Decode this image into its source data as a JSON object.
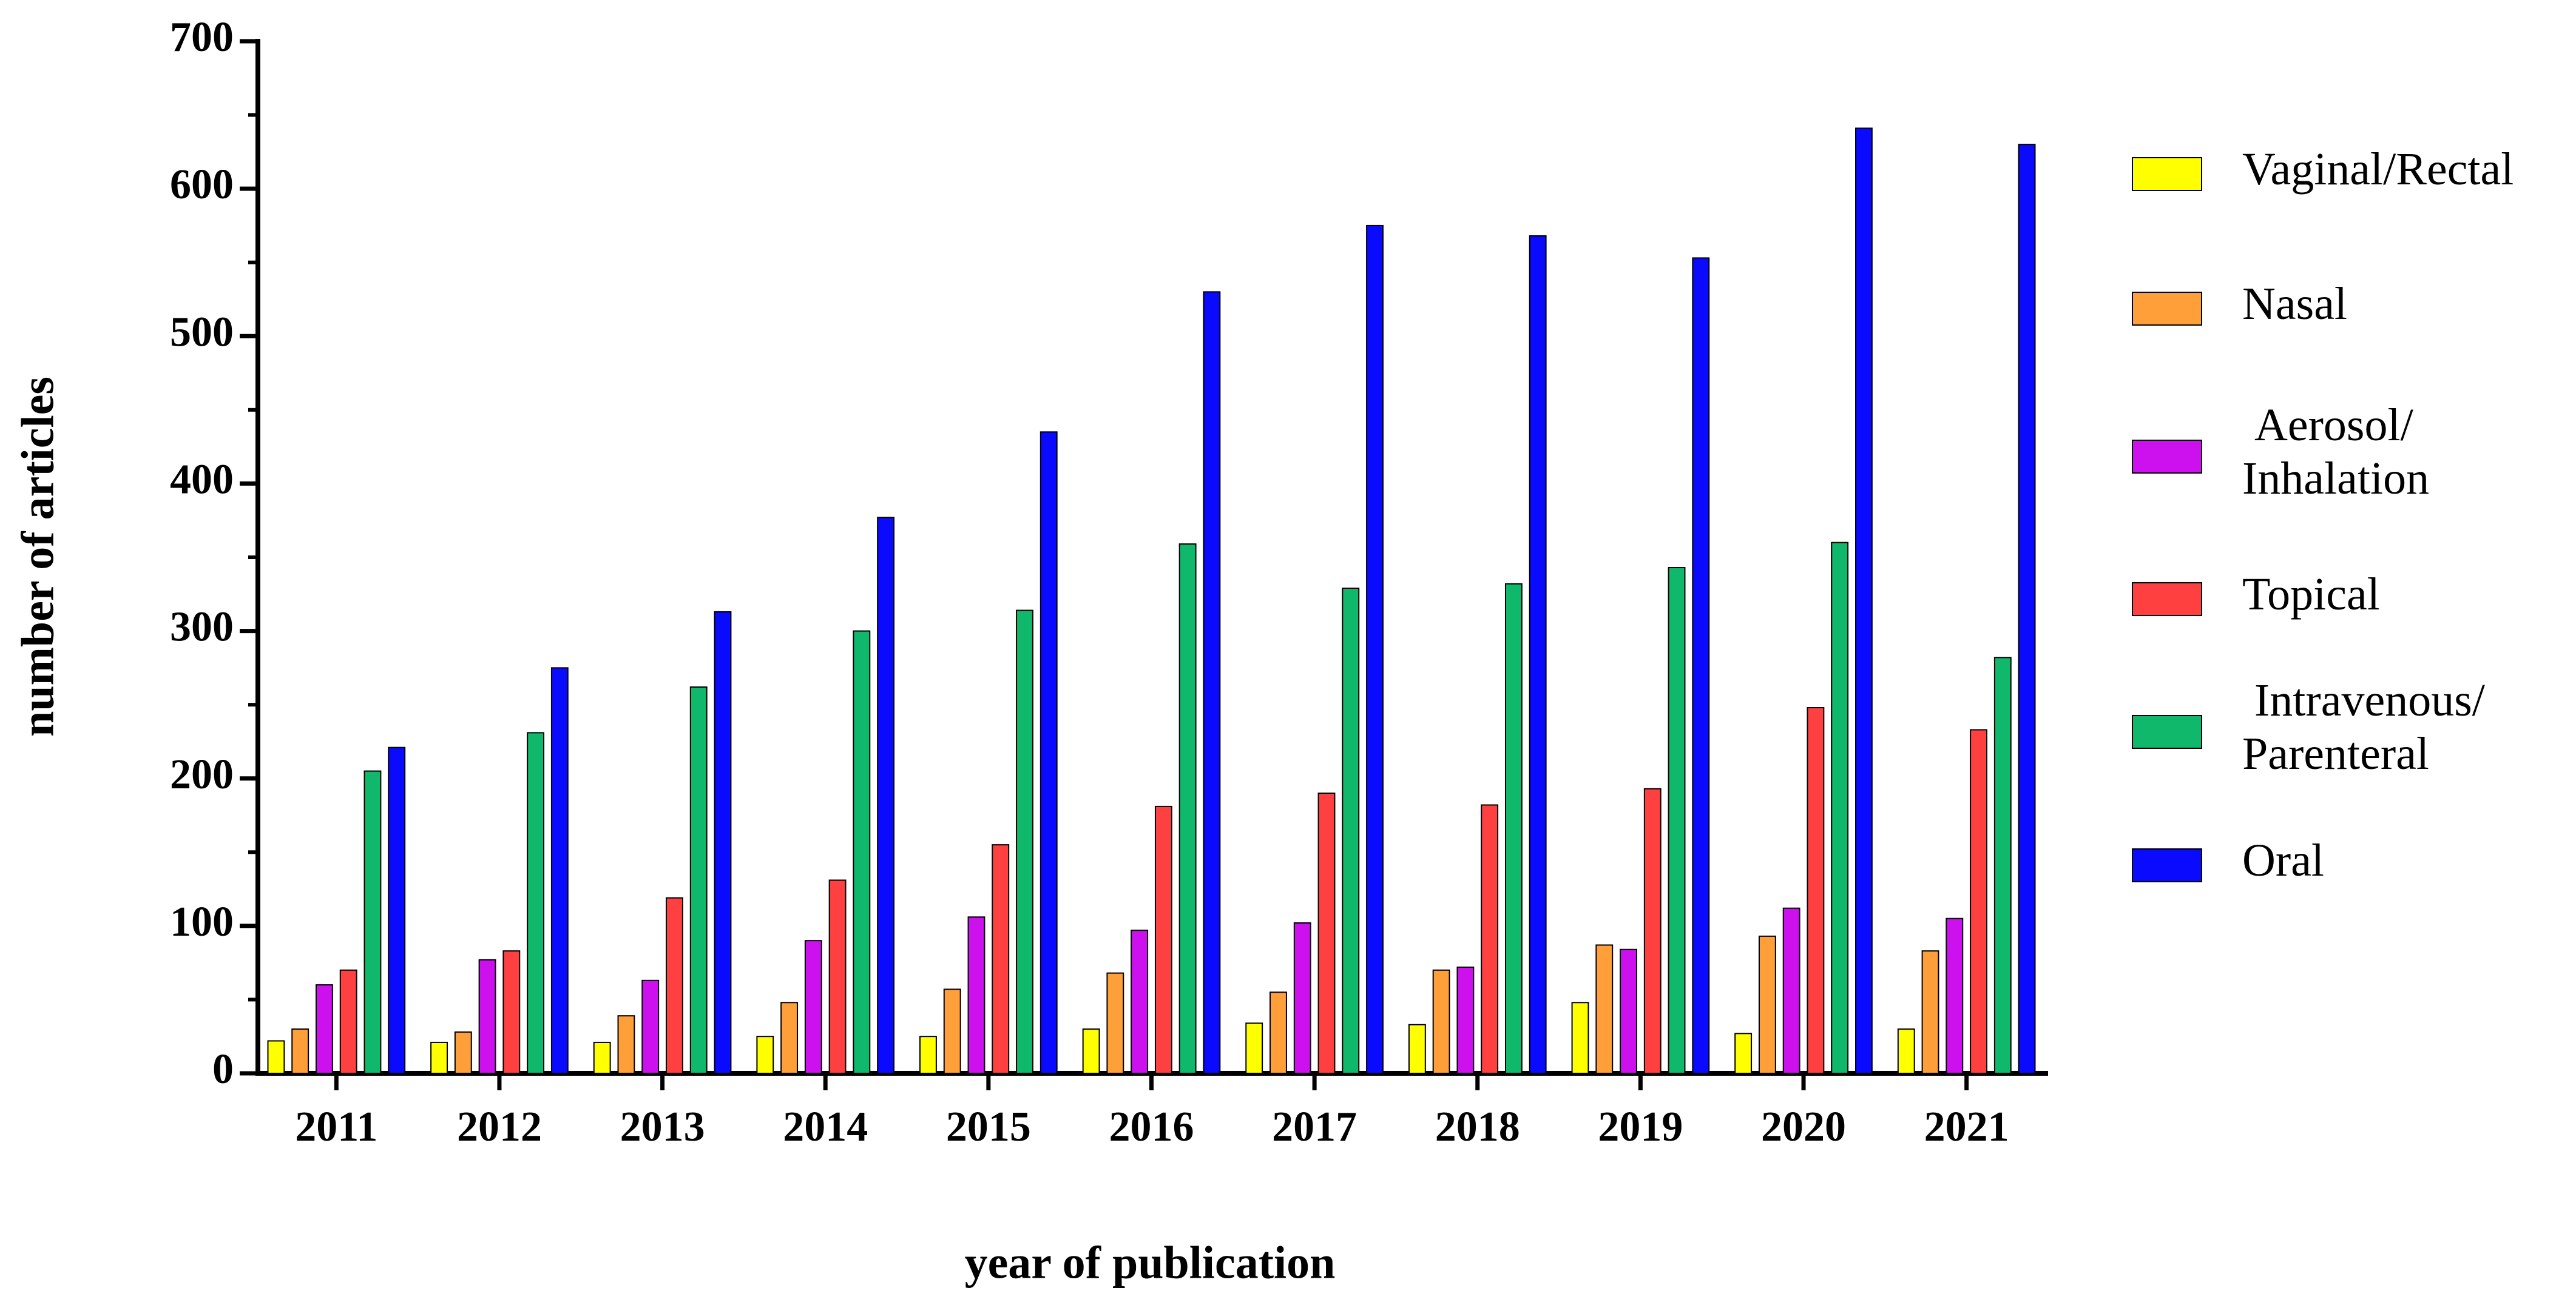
{
  "chart_data": {
    "type": "bar",
    "x_label": "year of publication",
    "y_label": "number of articles",
    "categories": [
      "2011",
      "2012",
      "2013",
      "2014",
      "2015",
      "2016",
      "2017",
      "2018",
      "2019",
      "2020",
      "2021"
    ],
    "series": [
      {
        "name": "Vaginal/Rectal",
        "color": "#ffff00",
        "values": [
          22,
          21,
          21,
          25,
          25,
          30,
          34,
          33,
          48,
          27,
          30
        ]
      },
      {
        "name": "Nasal",
        "color": "#ff9f3a",
        "values": [
          30,
          28,
          39,
          48,
          57,
          68,
          55,
          70,
          87,
          93,
          83
        ]
      },
      {
        "name": "Aerosol/\nInhalation",
        "color": "#cc11ee",
        "values": [
          60,
          77,
          63,
          90,
          106,
          97,
          102,
          72,
          84,
          112,
          105
        ]
      },
      {
        "name": "Topical",
        "color": "#ff4040",
        "values": [
          70,
          83,
          119,
          131,
          155,
          181,
          190,
          182,
          193,
          248,
          233
        ]
      },
      {
        "name": "Intravenous/\nParenteral",
        "color": "#0fb86a",
        "values": [
          205,
          231,
          262,
          300,
          314,
          359,
          329,
          332,
          343,
          360,
          282
        ]
      },
      {
        "name": "Oral",
        "color": "#0a0aff",
        "values": [
          221,
          275,
          313,
          377,
          435,
          530,
          575,
          568,
          553,
          641,
          630
        ]
      }
    ],
    "ylim": [
      0,
      700
    ],
    "yticks": [
      0,
      100,
      200,
      300,
      400,
      500,
      600,
      700
    ],
    "legend": "right"
  }
}
